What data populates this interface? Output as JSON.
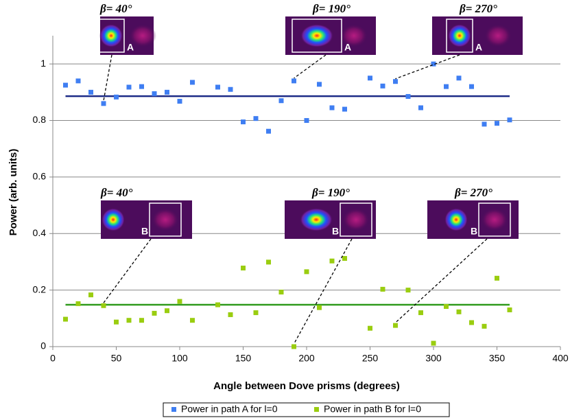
{
  "chart_data": {
    "type": "scatter",
    "x_label": "Angle between Dove prisms (degrees)",
    "y_label": "Power (arb. units)",
    "x": [
      10,
      20,
      30,
      40,
      50,
      60,
      70,
      80,
      90,
      100,
      110,
      130,
      140,
      150,
      160,
      170,
      180,
      190,
      200,
      210,
      220,
      230,
      250,
      260,
      270,
      280,
      290,
      300,
      310,
      320,
      330,
      340,
      350,
      360
    ],
    "series": [
      {
        "name": "Power in path A for l=0",
        "color": "#3f7ef2",
        "values": [
          0.925,
          0.94,
          0.9,
          0.86,
          0.883,
          0.918,
          0.92,
          0.895,
          0.9,
          0.868,
          0.935,
          0.918,
          0.91,
          0.795,
          0.807,
          0.762,
          0.87,
          0.94,
          0.8,
          0.928,
          0.845,
          0.84,
          0.95,
          0.922,
          0.938,
          0.885,
          0.845,
          1.0,
          0.92,
          0.95,
          0.92,
          0.787,
          0.79,
          0.802
        ]
      },
      {
        "name": "Power in path B for l=0",
        "color": "#9acd10",
        "values": [
          0.097,
          0.152,
          0.183,
          0.145,
          0.087,
          0.093,
          0.093,
          0.118,
          0.127,
          0.16,
          0.093,
          0.148,
          0.113,
          0.278,
          0.12,
          0.299,
          0.193,
          0.0,
          0.265,
          0.138,
          0.303,
          0.312,
          0.065,
          0.203,
          0.075,
          0.2,
          0.12,
          0.012,
          0.142,
          0.123,
          0.085,
          0.072,
          0.242,
          0.13
        ]
      }
    ],
    "mean_lines": [
      {
        "value": 0.886,
        "color": "#1c2a86"
      },
      {
        "value": 0.148,
        "color": "#2f9a1c"
      }
    ],
    "xlim": [
      0,
      400
    ],
    "xticks": [
      0,
      50,
      100,
      150,
      200,
      250,
      300,
      350,
      400
    ],
    "ylim": [
      0,
      1.1
    ],
    "yticks": [
      0,
      0.2,
      0.4,
      0.6,
      0.8,
      1
    ],
    "grid": true,
    "legend": "bottom",
    "insets": [
      {
        "label": "β= 40°",
        "path": "A"
      },
      {
        "label": "β= 190°",
        "path": "A"
      },
      {
        "label": "β= 270°",
        "path": "A"
      },
      {
        "label": "β= 40°",
        "path": "B"
      },
      {
        "label": "β= 190°",
        "path": "B"
      },
      {
        "label": "β= 270°",
        "path": "B"
      }
    ]
  }
}
